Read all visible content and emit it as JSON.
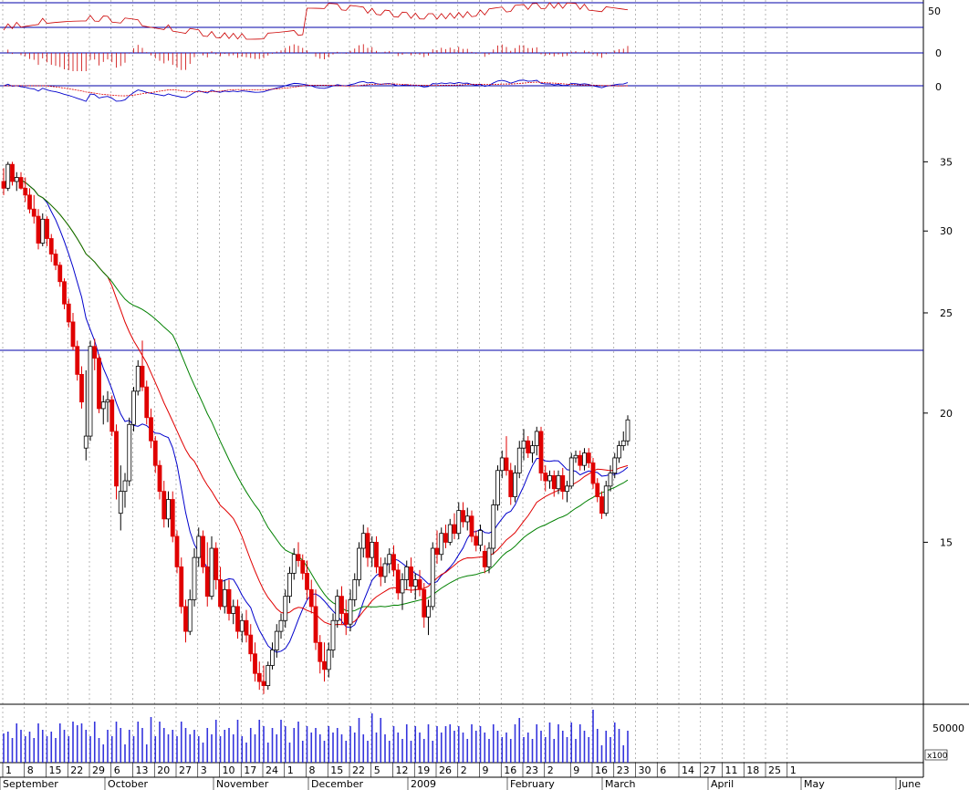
{
  "chart_data": {
    "type": "candlestick",
    "scale": "log",
    "colors": {
      "up_candle": "#ffffff",
      "down_candle": "#e00000",
      "candle_outline": "#000000",
      "ma_short": "#0000cc",
      "ma_mid": "#e00000",
      "ma_long": "#008000",
      "hline": "#0000aa",
      "volume": "#3333dd",
      "grid": "#888888",
      "background": "#ffffff"
    },
    "price_axis": {
      "ticks": [
        "35",
        "30",
        "25",
        "20",
        "15"
      ],
      "tick_values": [
        35,
        30,
        25,
        20,
        15
      ],
      "ylim": [
        10.5,
        37
      ]
    },
    "horizontal_line": 23.0,
    "rsi_axis": {
      "ticks": [
        "50"
      ],
      "lines": [
        75,
        50,
        25
      ]
    },
    "macd_axis": {
      "ticks": [
        "0"
      ]
    },
    "osc_axis": {
      "ticks": [
        "0"
      ]
    },
    "volume_axis": {
      "ticks": [
        "50000"
      ],
      "multiplier": "x100"
    },
    "date_ticks": [
      "1",
      "8",
      "15",
      "22",
      "29",
      "6",
      "13",
      "20",
      "27",
      "3",
      "10",
      "17",
      "24",
      "1",
      "8",
      "15",
      "22",
      "5",
      "12",
      "19",
      "26",
      "2",
      "9",
      "16",
      "23",
      "2",
      "9",
      "16",
      "23",
      "30",
      "6",
      "14",
      "27",
      "11",
      "18",
      "25",
      "1"
    ],
    "months": [
      "September",
      "October",
      "November",
      "December",
      "2009",
      "February",
      "March",
      "April",
      "May",
      "June"
    ],
    "candles": [
      [
        33.5,
        34.5,
        32.5,
        33.0
      ],
      [
        33.0,
        35.0,
        32.8,
        34.8
      ],
      [
        34.8,
        35.0,
        33.2,
        33.5
      ],
      [
        33.5,
        34.2,
        32.8,
        33.8
      ],
      [
        33.8,
        34.2,
        32.9,
        33.0
      ],
      [
        33.0,
        33.8,
        32.0,
        32.5
      ],
      [
        32.5,
        33.0,
        31.2,
        31.5
      ],
      [
        31.5,
        32.5,
        30.5,
        31.0
      ],
      [
        31.0,
        31.5,
        28.8,
        29.2
      ],
      [
        29.2,
        31.2,
        29.0,
        30.8
      ],
      [
        30.8,
        31.0,
        29.0,
        29.5
      ],
      [
        29.5,
        29.8,
        28.0,
        28.5
      ],
      [
        28.5,
        28.8,
        27.5,
        27.8
      ],
      [
        27.8,
        28.0,
        26.5,
        26.8
      ],
      [
        26.8,
        27.0,
        25.2,
        25.5
      ],
      [
        25.5,
        25.8,
        24.2,
        24.5
      ],
      [
        24.5,
        25.0,
        23.0,
        23.2
      ],
      [
        23.2,
        23.5,
        21.5,
        21.8
      ],
      [
        21.8,
        22.2,
        20.2,
        20.5
      ],
      [
        18.5,
        22.0,
        18.0,
        19.0
      ],
      [
        19.0,
        23.5,
        18.8,
        23.2
      ],
      [
        23.2,
        23.6,
        22.0,
        22.6
      ],
      [
        22.6,
        22.8,
        20.0,
        20.2
      ],
      [
        20.2,
        20.8,
        19.5,
        20.5
      ],
      [
        20.5,
        21.0,
        19.6,
        20.6
      ],
      [
        20.6,
        20.8,
        19.0,
        19.2
      ],
      [
        19.2,
        19.5,
        16.5,
        17.0
      ],
      [
        16.0,
        17.8,
        15.4,
        16.8
      ],
      [
        16.8,
        17.5,
        16.2,
        17.2
      ],
      [
        17.2,
        19.8,
        17.0,
        19.5
      ],
      [
        19.5,
        21.2,
        19.2,
        21.0
      ],
      [
        21.0,
        22.5,
        20.8,
        22.2
      ],
      [
        22.2,
        23.5,
        21.0,
        21.2
      ],
      [
        21.2,
        21.5,
        19.5,
        19.8
      ],
      [
        19.8,
        20.2,
        18.5,
        18.8
      ],
      [
        18.8,
        19.0,
        17.5,
        17.8
      ],
      [
        17.8,
        18.0,
        16.5,
        16.8
      ],
      [
        16.8,
        17.2,
        15.5,
        15.8
      ],
      [
        15.8,
        16.8,
        15.5,
        16.5
      ],
      [
        16.5,
        16.8,
        15.0,
        15.2
      ],
      [
        15.2,
        15.4,
        14.0,
        14.2
      ],
      [
        14.2,
        14.5,
        12.8,
        13.0
      ],
      [
        13.0,
        13.2,
        12.0,
        12.3
      ],
      [
        12.3,
        13.5,
        12.2,
        13.2
      ],
      [
        13.2,
        14.8,
        13.0,
        14.5
      ],
      [
        14.5,
        15.5,
        14.2,
        15.2
      ],
      [
        15.2,
        15.4,
        14.0,
        14.2
      ],
      [
        14.2,
        15.0,
        13.0,
        13.3
      ],
      [
        13.3,
        15.2,
        13.2,
        14.8
      ],
      [
        14.8,
        15.0,
        13.5,
        13.8
      ],
      [
        13.8,
        14.2,
        12.9,
        13.0
      ],
      [
        13.0,
        13.8,
        12.8,
        13.5
      ],
      [
        13.5,
        13.8,
        12.6,
        12.8
      ],
      [
        12.8,
        13.2,
        12.5,
        13.0
      ],
      [
        13.0,
        13.2,
        12.1,
        12.3
      ],
      [
        12.3,
        12.8,
        12.0,
        12.6
      ],
      [
        12.6,
        12.9,
        12.0,
        12.2
      ],
      [
        12.2,
        12.5,
        11.5,
        11.7
      ],
      [
        11.7,
        12.0,
        11.0,
        11.2
      ],
      [
        11.2,
        11.5,
        10.8,
        11.0
      ],
      [
        11.0,
        11.4,
        10.7,
        10.9
      ],
      [
        10.9,
        11.5,
        10.8,
        11.4
      ],
      [
        11.4,
        12.0,
        11.3,
        11.8
      ],
      [
        11.8,
        12.5,
        11.6,
        12.3
      ],
      [
        12.3,
        12.8,
        12.1,
        12.6
      ],
      [
        12.6,
        13.5,
        12.4,
        13.3
      ],
      [
        13.3,
        14.2,
        13.1,
        14.0
      ],
      [
        14.0,
        14.8,
        13.8,
        14.6
      ],
      [
        14.6,
        15.0,
        14.2,
        14.4
      ],
      [
        14.4,
        14.6,
        13.8,
        14.0
      ],
      [
        14.0,
        14.4,
        13.2,
        13.5
      ],
      [
        13.5,
        13.8,
        12.8,
        13.0
      ],
      [
        13.0,
        13.5,
        11.8,
        12.0
      ],
      [
        12.0,
        12.2,
        11.2,
        11.5
      ],
      [
        11.5,
        12.0,
        11.0,
        11.3
      ],
      [
        11.3,
        12.0,
        11.1,
        11.8
      ],
      [
        11.8,
        12.8,
        11.6,
        12.6
      ],
      [
        12.6,
        13.5,
        12.4,
        13.3
      ],
      [
        13.3,
        13.6,
        12.5,
        12.8
      ],
      [
        12.8,
        13.2,
        12.2,
        12.5
      ],
      [
        12.5,
        13.5,
        12.3,
        13.2
      ],
      [
        13.2,
        14.0,
        13.0,
        13.8
      ],
      [
        13.8,
        15.0,
        13.6,
        14.8
      ],
      [
        14.8,
        15.6,
        14.5,
        15.3
      ],
      [
        15.3,
        15.5,
        14.2,
        14.5
      ],
      [
        14.5,
        15.2,
        14.2,
        15.0
      ],
      [
        15.0,
        15.2,
        14.0,
        14.2
      ],
      [
        14.2,
        14.5,
        13.6,
        13.9
      ],
      [
        13.9,
        14.5,
        13.7,
        14.3
      ],
      [
        14.3,
        14.8,
        14.0,
        14.6
      ],
      [
        14.6,
        14.9,
        13.9,
        14.1
      ],
      [
        14.1,
        14.3,
        13.2,
        13.4
      ],
      [
        13.4,
        14.0,
        12.9,
        13.8
      ],
      [
        13.8,
        14.4,
        13.5,
        14.2
      ],
      [
        14.2,
        14.5,
        13.4,
        13.6
      ],
      [
        13.6,
        14.0,
        13.2,
        13.8
      ],
      [
        13.8,
        14.1,
        13.3,
        13.5
      ],
      [
        13.5,
        13.7,
        12.4,
        12.7
      ],
      [
        12.7,
        13.2,
        12.2,
        13.0
      ],
      [
        13.0,
        15.0,
        12.9,
        14.8
      ],
      [
        14.8,
        15.4,
        14.3,
        14.6
      ],
      [
        14.6,
        15.5,
        14.4,
        15.3
      ],
      [
        15.3,
        15.6,
        14.8,
        15.0
      ],
      [
        15.0,
        15.8,
        14.9,
        15.6
      ],
      [
        15.6,
        16.0,
        15.1,
        15.3
      ],
      [
        15.3,
        16.4,
        15.1,
        16.1
      ],
      [
        16.1,
        16.4,
        15.5,
        15.7
      ],
      [
        15.7,
        16.2,
        15.4,
        15.9
      ],
      [
        15.9,
        16.1,
        15.0,
        15.2
      ],
      [
        15.2,
        15.4,
        14.7,
        14.9
      ],
      [
        14.9,
        15.6,
        14.7,
        15.4
      ],
      [
        14.7,
        14.9,
        14.0,
        14.2
      ],
      [
        14.2,
        15.0,
        14.0,
        14.8
      ],
      [
        14.8,
        16.5,
        14.6,
        16.3
      ],
      [
        16.3,
        17.8,
        16.1,
        17.6
      ],
      [
        17.6,
        18.4,
        17.3,
        18.1
      ],
      [
        18.1,
        19.0,
        17.4,
        17.6
      ],
      [
        17.6,
        17.9,
        16.3,
        16.6
      ],
      [
        16.6,
        17.8,
        16.4,
        17.5
      ],
      [
        17.5,
        18.8,
        17.3,
        18.5
      ],
      [
        18.5,
        19.3,
        18.0,
        18.8
      ],
      [
        18.8,
        19.0,
        18.1,
        18.3
      ],
      [
        18.3,
        18.8,
        17.9,
        18.6
      ],
      [
        18.6,
        19.4,
        18.2,
        19.2
      ],
      [
        19.2,
        19.4,
        17.2,
        17.5
      ],
      [
        17.5,
        17.8,
        16.8,
        17.2
      ],
      [
        17.2,
        17.6,
        16.9,
        17.4
      ],
      [
        17.4,
        17.6,
        16.6,
        16.9
      ],
      [
        16.9,
        17.6,
        16.7,
        17.4
      ],
      [
        17.4,
        17.7,
        16.5,
        16.8
      ],
      [
        16.8,
        17.2,
        16.4,
        17.0
      ],
      [
        17.0,
        18.3,
        16.9,
        18.1
      ],
      [
        18.1,
        18.4,
        17.9,
        18.2
      ],
      [
        18.2,
        18.4,
        17.6,
        17.8
      ],
      [
        17.8,
        18.5,
        17.6,
        18.3
      ],
      [
        18.3,
        18.5,
        17.7,
        17.9
      ],
      [
        17.9,
        18.1,
        16.9,
        17.1
      ],
      [
        17.1,
        17.3,
        16.4,
        16.6
      ],
      [
        16.6,
        16.8,
        15.8,
        16.0
      ],
      [
        16.0,
        17.2,
        15.9,
        17.0
      ],
      [
        17.0,
        17.8,
        16.8,
        17.5
      ],
      [
        17.5,
        18.3,
        17.3,
        18.1
      ],
      [
        18.1,
        18.8,
        17.9,
        18.6
      ],
      [
        18.6,
        19.2,
        18.4,
        18.8
      ],
      [
        18.8,
        19.9,
        18.6,
        19.7
      ]
    ]
  }
}
